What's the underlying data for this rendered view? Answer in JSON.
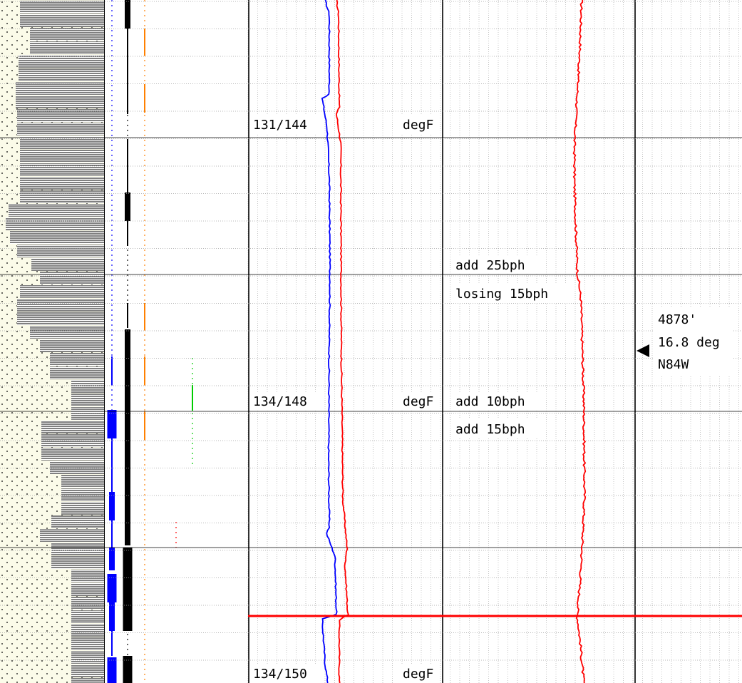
{
  "colors": {
    "lithology_bg": "#fbfbe9",
    "lithology_hatch": "#000000",
    "track_lines": "#000000",
    "grid_minor": "#a8a8a8",
    "grid_major": "#000000",
    "curve_blue": "#0000ff",
    "curve_red": "#ff0000",
    "marker_orange": "#ff8000",
    "marker_green": "#00cc00",
    "marker_red": "#ff0000",
    "formation_top_line": "#ff0000"
  },
  "chart_data": {
    "type": "line",
    "title": "",
    "xlabel": "",
    "ylabel": "",
    "temperature_readings": [
      {
        "label": "131/144",
        "unit": "degF"
      },
      {
        "label": "134/148",
        "unit": "degF"
      },
      {
        "label": "134/150",
        "unit": "degF"
      }
    ],
    "comments": [
      "add 25bph",
      "losing 15bph",
      "add 10bph",
      "add 15bph"
    ],
    "survey": {
      "depth": "4878'",
      "inclination": "16.8 deg",
      "azimuth": "N84W"
    }
  }
}
